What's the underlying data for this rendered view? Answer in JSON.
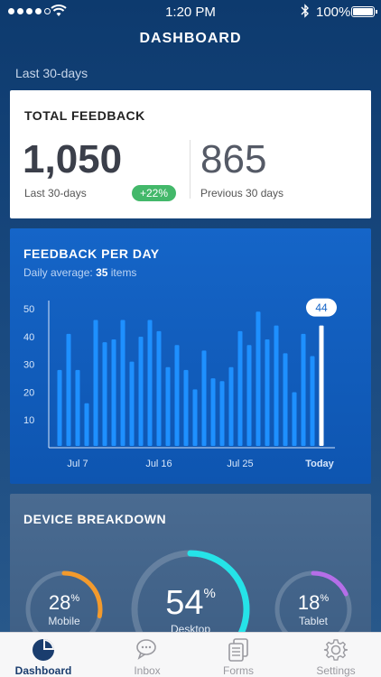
{
  "status_bar": {
    "time": "1:20 PM",
    "battery": "100%"
  },
  "header": {
    "title": "DASHBOARD"
  },
  "range_label": "Last 30-days",
  "total_feedback": {
    "title": "TOTAL FEEDBACK",
    "current_value": "1,050",
    "current_label": "Last 30-days",
    "change": "+22%",
    "previous_value": "865",
    "previous_label": "Previous 30 days"
  },
  "feedback_per_day": {
    "title": "FEEDBACK PER DAY",
    "subtitle_prefix": "Daily average:",
    "average": "35",
    "subtitle_suffix": "items",
    "highlight_value": "44"
  },
  "device_breakdown": {
    "title": "DEVICE BREAKDOWN",
    "items": [
      {
        "value": "28",
        "unit": "%",
        "label": "Mobile",
        "color": "#f39a2c",
        "fraction": 0.28
      },
      {
        "value": "54",
        "unit": "%",
        "label": "Desktop",
        "color": "#25e3e8",
        "fraction": 0.54
      },
      {
        "value": "18",
        "unit": "%",
        "label": "Tablet",
        "color": "#b56ee8",
        "fraction": 0.18
      }
    ]
  },
  "tabs": [
    {
      "label": "Dashboard",
      "icon": "pie-chart-icon",
      "active": true
    },
    {
      "label": "Inbox",
      "icon": "chat-bubbles-icon",
      "active": false
    },
    {
      "label": "Forms",
      "icon": "documents-icon",
      "active": false
    },
    {
      "label": "Settings",
      "icon": "gear-icon",
      "active": false
    }
  ],
  "chart_data": {
    "type": "bar",
    "title": "FEEDBACK PER DAY",
    "xlabel": "",
    "ylabel": "",
    "ylim": [
      0,
      53
    ],
    "y_ticks": [
      10,
      20,
      30,
      40,
      50
    ],
    "x_tick_labels": [
      {
        "index": 2,
        "label": "Jul 7"
      },
      {
        "index": 11,
        "label": "Jul 16"
      },
      {
        "index": 20,
        "label": "Jul 25"
      },
      {
        "index": 29,
        "label": "Today"
      }
    ],
    "values": [
      28,
      41,
      28,
      16,
      46,
      38,
      39,
      46,
      31,
      40,
      46,
      42,
      29,
      37,
      28,
      21,
      35,
      25,
      24,
      29,
      42,
      37,
      49,
      39,
      44,
      34,
      20,
      41,
      33,
      44
    ],
    "highlight_index": 29,
    "colors": {
      "bar": "#1e90ff",
      "highlight": "#ffffff",
      "axis": "#ffffff",
      "label": "#ffffff"
    }
  }
}
